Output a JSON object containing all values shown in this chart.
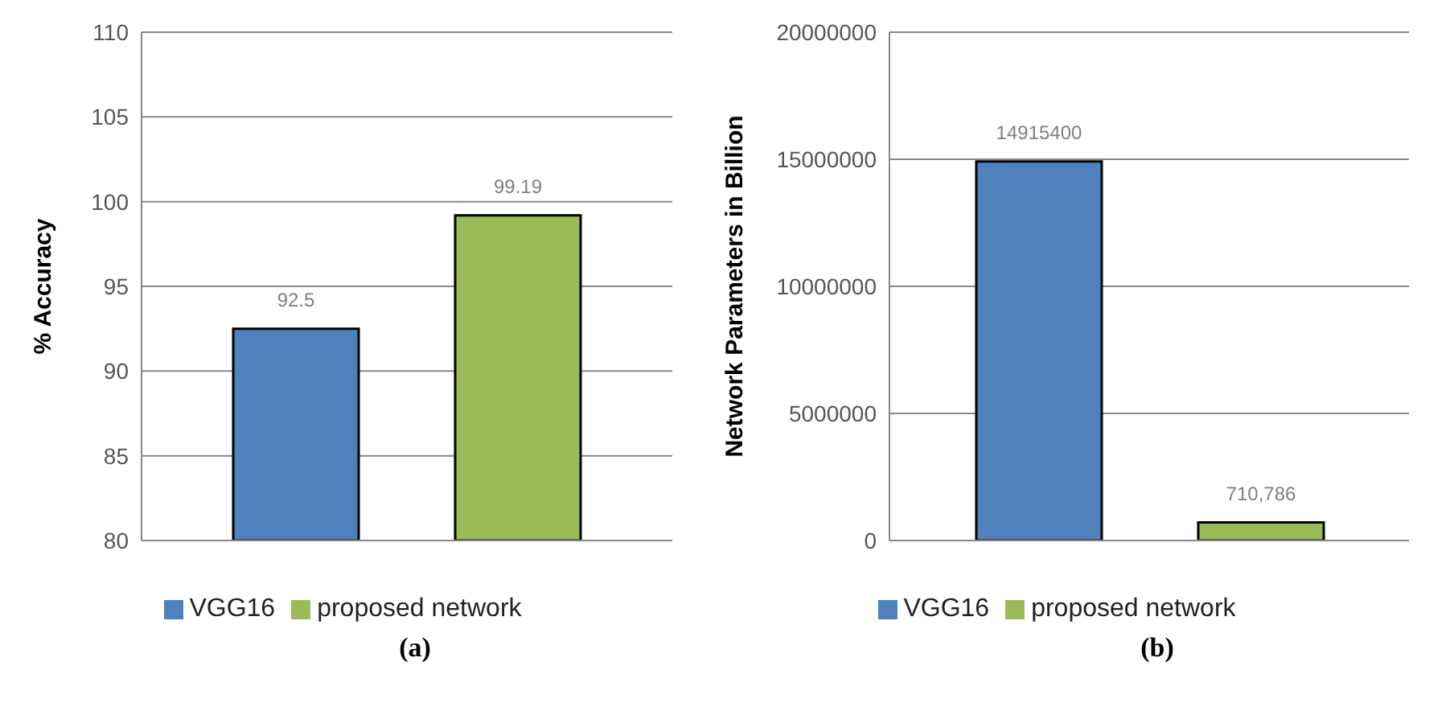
{
  "chart_data": [
    {
      "type": "bar",
      "ylabel": "% Accuracy",
      "categories": [
        null
      ],
      "series": [
        {
          "name": "VGG16",
          "color": "#4f81bd",
          "values": [
            92.5
          ],
          "value_labels": [
            "92.5"
          ]
        },
        {
          "name": "proposed network",
          "color": "#9bbb59",
          "values": [
            99.19
          ],
          "value_labels": [
            "99.19"
          ]
        }
      ],
      "ylim": [
        80,
        110
      ],
      "yticks": [
        80,
        85,
        90,
        95,
        100,
        105,
        110
      ],
      "grid": "y",
      "legend": "bottom",
      "annotations": [
        "(a)"
      ]
    },
    {
      "type": "bar",
      "ylabel": "Network Parameters in Billion",
      "categories": [
        null
      ],
      "series": [
        {
          "name": "VGG16",
          "color": "#4f81bd",
          "values": [
            14915400
          ],
          "value_labels": [
            "14915400"
          ]
        },
        {
          "name": "proposed network",
          "color": "#9bbb59",
          "values": [
            710786
          ],
          "value_labels": [
            "710,786"
          ]
        }
      ],
      "ylim": [
        0,
        20000000
      ],
      "yticks": [
        0,
        5000000,
        10000000,
        15000000,
        20000000
      ],
      "grid": "y",
      "legend": "bottom",
      "annotations": [
        "(b)"
      ]
    }
  ]
}
